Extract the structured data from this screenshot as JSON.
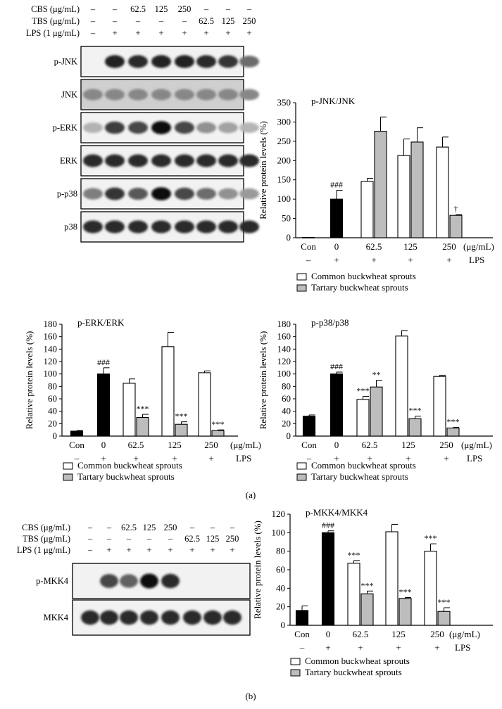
{
  "panel_labels": {
    "a": "(a)",
    "b": "(b)"
  },
  "blot_a": {
    "rows": [
      {
        "label": "CBS (μg/mL)",
        "values": [
          "–",
          "–",
          "62.5",
          "125",
          "250",
          "–",
          "–",
          "–"
        ]
      },
      {
        "label": "TBS (μg/mL)",
        "values": [
          "–",
          "–",
          "–",
          "–",
          "–",
          "62.5",
          "125",
          "250"
        ]
      },
      {
        "label": "LPS (1 μg/mL)",
        "values": [
          "–",
          "+",
          "+",
          "+",
          "+",
          "+",
          "+",
          "+"
        ]
      }
    ],
    "bands": [
      {
        "name": "p-JNK",
        "intensity": [
          0,
          0.9,
          0.85,
          0.9,
          0.9,
          0.85,
          0.8,
          0.5
        ]
      },
      {
        "name": "JNK",
        "intensity": [
          0.35,
          0.35,
          0.35,
          0.35,
          0.35,
          0.35,
          0.35,
          0.35
        ]
      },
      {
        "name": "p-ERK",
        "intensity": [
          0.12,
          0.75,
          0.7,
          1,
          0.7,
          0.3,
          0.2,
          0.1
        ]
      },
      {
        "name": "ERK",
        "intensity": [
          0.85,
          0.85,
          0.85,
          0.85,
          0.85,
          0.85,
          0.85,
          0.85
        ]
      },
      {
        "name": "p-p38",
        "intensity": [
          0.4,
          0.8,
          0.6,
          1,
          0.7,
          0.5,
          0.3,
          0.25
        ]
      },
      {
        "name": "p38",
        "intensity": [
          0.85,
          0.85,
          0.85,
          0.85,
          0.85,
          0.85,
          0.85,
          0.85
        ]
      }
    ]
  },
  "blot_b": {
    "rows": [
      {
        "label": "CBS (μg/mL)",
        "values": [
          "–",
          "–",
          "62.5",
          "125",
          "250",
          "–",
          "–",
          "–"
        ]
      },
      {
        "label": "TBS (μg/mL)",
        "values": [
          "–",
          "–",
          "–",
          "–",
          "–",
          "62.5",
          "125",
          "250"
        ]
      },
      {
        "label": "LPS (1 μg/mL)",
        "values": [
          "–",
          "+",
          "+",
          "+",
          "+",
          "+",
          "+",
          "+"
        ]
      }
    ],
    "bands": [
      {
        "name": "p-MKK4",
        "intensity": [
          0,
          0.7,
          0.55,
          1,
          0.85,
          0,
          0,
          0
        ]
      },
      {
        "name": "MKK4",
        "intensity": [
          0.85,
          0.85,
          0.85,
          0.85,
          0.85,
          0.85,
          0.85,
          0.85
        ]
      }
    ]
  },
  "chart_data": [
    {
      "type": "bar",
      "panel": "a",
      "title": "p-JNK/JNK",
      "ylabel": "Relative protein levels (%)",
      "ylim": [
        0,
        350
      ],
      "yticks": [
        0,
        50,
        100,
        150,
        200,
        250,
        300,
        350
      ],
      "categories": [
        "Con",
        "0",
        "62.5",
        "125",
        "250"
      ],
      "xunit": "(μg/mL)",
      "lps_row": [
        "–",
        "+",
        "+",
        "+",
        "+"
      ],
      "lps_label": "LPS",
      "series": [
        {
          "name": "Con",
          "color": "#ffffff",
          "points": [
            {
              "cat": 0,
              "value": 1,
              "error": 0
            }
          ]
        },
        {
          "name": "LPS",
          "color": "#000000",
          "points": [
            {
              "cat": 1,
              "value": 100,
              "error": 23,
              "sig": "###"
            }
          ]
        },
        {
          "name": "Common buckwheat sprouts",
          "color": "#ffffff",
          "points": [
            {
              "cat": 2,
              "value": 146,
              "error": 8
            },
            {
              "cat": 3,
              "value": 213,
              "error": 43
            },
            {
              "cat": 4,
              "value": 235,
              "error": 26
            }
          ]
        },
        {
          "name": "Tartary buckwheat sprouts",
          "color": "#bdbdbd",
          "points": [
            {
              "cat": 2,
              "value": 276,
              "error": 37
            },
            {
              "cat": 3,
              "value": 248,
              "error": 37
            },
            {
              "cat": 4,
              "value": 58,
              "error": 2,
              "sig": "†"
            }
          ]
        }
      ],
      "legend": [
        "Common buckwheat sprouts",
        "Tartary buckwheat sprouts"
      ]
    },
    {
      "type": "bar",
      "panel": "a",
      "title": "p-ERK/ERK",
      "ylabel": "Relative protein levels (%)",
      "ylim": [
        0,
        180
      ],
      "yticks": [
        0,
        20,
        40,
        60,
        80,
        100,
        120,
        140,
        160,
        180
      ],
      "categories": [
        "Con",
        "0",
        "62.5",
        "125",
        "250"
      ],
      "xunit": "(μg/mL)",
      "lps_row": [
        "–",
        "+",
        "+",
        "+",
        "+"
      ],
      "lps_label": "LPS",
      "series": [
        {
          "name": "Con",
          "color": "#000000",
          "points": [
            {
              "cat": 0,
              "value": 8,
              "error": 1
            }
          ]
        },
        {
          "name": "LPS",
          "color": "#000000",
          "points": [
            {
              "cat": 1,
              "value": 100,
              "error": 10,
              "sig": "###"
            }
          ]
        },
        {
          "name": "Common buckwheat sprouts",
          "color": "#ffffff",
          "points": [
            {
              "cat": 2,
              "value": 85,
              "error": 7
            },
            {
              "cat": 3,
              "value": 144,
              "error": 23
            },
            {
              "cat": 4,
              "value": 102,
              "error": 3
            }
          ]
        },
        {
          "name": "Tartary buckwheat sprouts",
          "color": "#bdbdbd",
          "points": [
            {
              "cat": 2,
              "value": 30,
              "error": 5,
              "sig": "***"
            },
            {
              "cat": 3,
              "value": 19,
              "error": 4,
              "sig": "***"
            },
            {
              "cat": 4,
              "value": 9,
              "error": 1,
              "sig": "***"
            }
          ]
        }
      ],
      "legend": [
        "Common buckwheat sprouts",
        "Tartary buckwheat sprouts"
      ]
    },
    {
      "type": "bar",
      "panel": "a",
      "title": "p-p38/p38",
      "ylabel": "Relative protein levels (%)",
      "ylim": [
        0,
        180
      ],
      "yticks": [
        0,
        20,
        40,
        60,
        80,
        100,
        120,
        140,
        160,
        180
      ],
      "categories": [
        "Con",
        "0",
        "62.5",
        "125",
        "250"
      ],
      "xunit": "(μg/mL)",
      "lps_row": [
        "–",
        "+",
        "+",
        "+",
        "+"
      ],
      "lps_label": "LPS",
      "series": [
        {
          "name": "Con",
          "color": "#000000",
          "points": [
            {
              "cat": 0,
              "value": 32,
              "error": 2
            }
          ]
        },
        {
          "name": "LPS",
          "color": "#000000",
          "points": [
            {
              "cat": 1,
              "value": 100,
              "error": 3,
              "sig": "###"
            }
          ]
        },
        {
          "name": "Common buckwheat sprouts",
          "color": "#ffffff",
          "points": [
            {
              "cat": 2,
              "value": 59,
              "error": 5,
              "sig": "***"
            },
            {
              "cat": 3,
              "value": 161,
              "error": 9
            },
            {
              "cat": 4,
              "value": 96,
              "error": 2
            }
          ]
        },
        {
          "name": "Tartary buckwheat sprouts",
          "color": "#bdbdbd",
          "points": [
            {
              "cat": 2,
              "value": 79,
              "error": 11,
              "sig": "**"
            },
            {
              "cat": 3,
              "value": 28,
              "error": 4,
              "sig": "***"
            },
            {
              "cat": 4,
              "value": 13,
              "error": 1,
              "sig": "***"
            }
          ]
        }
      ],
      "legend": [
        "Common buckwheat sprouts",
        "Tartary buckwheat sprouts"
      ]
    },
    {
      "type": "bar",
      "panel": "b",
      "title": "p-MKK4/MKK4",
      "ylabel": "Relative protein levels (%)",
      "ylim": [
        0,
        120
      ],
      "yticks": [
        0,
        20,
        40,
        60,
        80,
        100,
        120
      ],
      "categories": [
        "Con",
        "0",
        "62.5",
        "125",
        "250"
      ],
      "xunit": "(μg/mL)",
      "lps_row": [
        "–",
        "+",
        "+",
        "+",
        "+"
      ],
      "lps_label": "LPS",
      "series": [
        {
          "name": "Con",
          "color": "#000000",
          "points": [
            {
              "cat": 0,
              "value": 16,
              "error": 5
            }
          ]
        },
        {
          "name": "LPS",
          "color": "#000000",
          "points": [
            {
              "cat": 1,
              "value": 100,
              "error": 2,
              "sig": "###"
            }
          ]
        },
        {
          "name": "Common buckwheat sprouts",
          "color": "#ffffff",
          "points": [
            {
              "cat": 2,
              "value": 67,
              "error": 3,
              "sig": "***"
            },
            {
              "cat": 3,
              "value": 101,
              "error": 8
            },
            {
              "cat": 4,
              "value": 80,
              "error": 8,
              "sig": "***"
            }
          ]
        },
        {
          "name": "Tartary buckwheat sprouts",
          "color": "#bdbdbd",
          "points": [
            {
              "cat": 2,
              "value": 34,
              "error": 3,
              "sig": "***"
            },
            {
              "cat": 3,
              "value": 29,
              "error": 1,
              "sig": "***"
            },
            {
              "cat": 4,
              "value": 15,
              "error": 4,
              "sig": "***"
            }
          ]
        }
      ],
      "legend": [
        "Common buckwheat sprouts",
        "Tartary buckwheat sprouts"
      ]
    }
  ]
}
